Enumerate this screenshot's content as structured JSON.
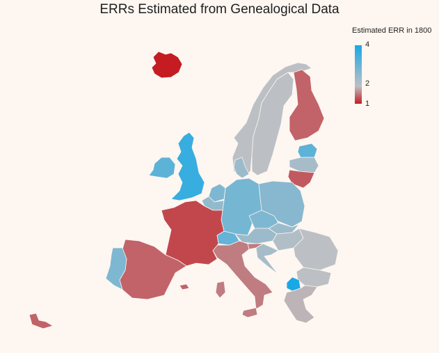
{
  "title": "ERRs Estimated from Genealogical Data",
  "legend": {
    "title": "Estimated ERR in 1800",
    "ticks": [
      "4",
      "2",
      "1"
    ],
    "colors": {
      "high": "#19a8e6",
      "mid": "#bcc0c4",
      "low": "#c41c22"
    }
  },
  "regions": [
    {
      "name": "Iceland",
      "value": 1.0
    },
    {
      "name": "Ireland",
      "value": 3.0
    },
    {
      "name": "United Kingdom",
      "value": 3.5
    },
    {
      "name": "Norway",
      "value": 2.0
    },
    {
      "name": "Sweden",
      "value": 2.0
    },
    {
      "name": "Finland",
      "value": 1.35
    },
    {
      "name": "Estonia",
      "value": 3.0
    },
    {
      "name": "Latvia",
      "value": 2.2
    },
    {
      "name": "Lithuania",
      "value": 1.3
    },
    {
      "name": "Denmark",
      "value": 2.3
    },
    {
      "name": "Netherlands",
      "value": 2.6
    },
    {
      "name": "Belgium",
      "value": 2.4
    },
    {
      "name": "Germany",
      "value": 2.7
    },
    {
      "name": "Poland",
      "value": 2.5
    },
    {
      "name": "Czechia",
      "value": 2.6
    },
    {
      "name": "Slovakia",
      "value": 2.3
    },
    {
      "name": "Austria",
      "value": 2.3
    },
    {
      "name": "Switzerland",
      "value": 2.9
    },
    {
      "name": "Hungary",
      "value": 2.1
    },
    {
      "name": "Romania",
      "value": 2.0
    },
    {
      "name": "Bulgaria",
      "value": 2.0
    },
    {
      "name": "North Macedonia",
      "value": 4.0
    },
    {
      "name": "Greece",
      "value": 1.9
    },
    {
      "name": "Croatia",
      "value": 2.2
    },
    {
      "name": "Slovenia",
      "value": 1.5
    },
    {
      "name": "Italy",
      "value": 1.5
    },
    {
      "name": "France",
      "value": 1.2
    },
    {
      "name": "Spain",
      "value": 1.35
    },
    {
      "name": "Portugal",
      "value": 2.6
    }
  ]
}
